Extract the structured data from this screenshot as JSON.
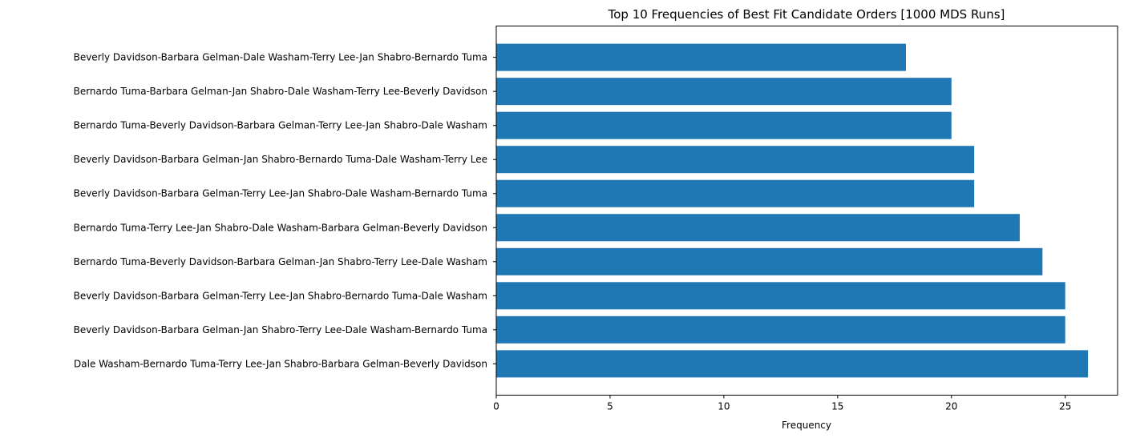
{
  "chart_data": {
    "type": "bar",
    "orientation": "horizontal",
    "title": "Top 10 Frequencies of Best Fit Candidate Orders [1000 MDS Runs]",
    "xlabel": "Frequency",
    "ylabel": "",
    "xlim": [
      0,
      27.3
    ],
    "xticks": [
      0,
      5,
      10,
      15,
      20,
      25
    ],
    "xtick_labels": [
      "0",
      "5",
      "10",
      "15",
      "20",
      "25"
    ],
    "grid": false,
    "legend": "none",
    "bar_color": "#1f77b4",
    "categories": [
      "Beverly Davidson-Barbara Gelman-Dale Washam-Terry Lee-Jan Shabro-Bernardo Tuma",
      "Bernardo Tuma-Barbara Gelman-Jan Shabro-Dale Washam-Terry Lee-Beverly Davidson",
      "Bernardo Tuma-Beverly Davidson-Barbara Gelman-Terry Lee-Jan Shabro-Dale Washam",
      "Beverly Davidson-Barbara Gelman-Jan Shabro-Bernardo Tuma-Dale Washam-Terry Lee",
      "Beverly Davidson-Barbara Gelman-Terry Lee-Jan Shabro-Dale Washam-Bernardo Tuma",
      "Bernardo Tuma-Terry Lee-Jan Shabro-Dale Washam-Barbara Gelman-Beverly Davidson",
      "Bernardo Tuma-Beverly Davidson-Barbara Gelman-Jan Shabro-Terry Lee-Dale Washam",
      "Beverly Davidson-Barbara Gelman-Terry Lee-Jan Shabro-Bernardo Tuma-Dale Washam",
      "Beverly Davidson-Barbara Gelman-Jan Shabro-Terry Lee-Dale Washam-Bernardo Tuma",
      "Dale Washam-Bernardo Tuma-Terry Lee-Jan Shabro-Barbara Gelman-Beverly Davidson"
    ],
    "values": [
      18,
      20,
      20,
      21,
      21,
      23,
      24,
      25,
      25,
      26
    ]
  }
}
